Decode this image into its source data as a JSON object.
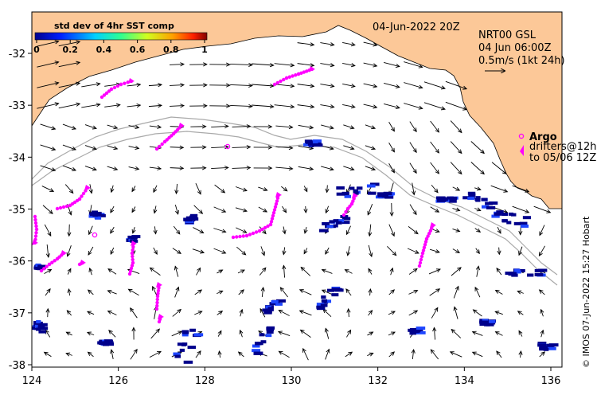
{
  "map": {
    "date_label": "04-Jun-2022 20Z",
    "product_lines": [
      "NRT00 GSL",
      "04 Jun 06:00Z",
      "0.5m/s (1kt 24h)"
    ],
    "colorbar": {
      "title": "std dev of 4hr SST comp",
      "ticks": [
        "0",
        "0.2",
        "0.4",
        "0.6",
        "0.8",
        "1"
      ]
    },
    "legend": {
      "argo_label": "Argo",
      "drifter_lines": [
        "drifters@12h",
        "to 05/06 12Z"
      ]
    },
    "credit": "© IMOS 07-Jun-2022 15:27 Hobart",
    "x_ticks": [
      "124",
      "126",
      "128",
      "130",
      "132",
      "134",
      "136"
    ],
    "y_ticks": [
      "-32",
      "-33",
      "-34",
      "-35",
      "-36",
      "-37",
      "-38"
    ],
    "colors": {
      "land": "#fcc898",
      "drifter": "#ff00ff",
      "low_sst_std": "#00008b",
      "isobath": "#a9a9a9"
    }
  }
}
